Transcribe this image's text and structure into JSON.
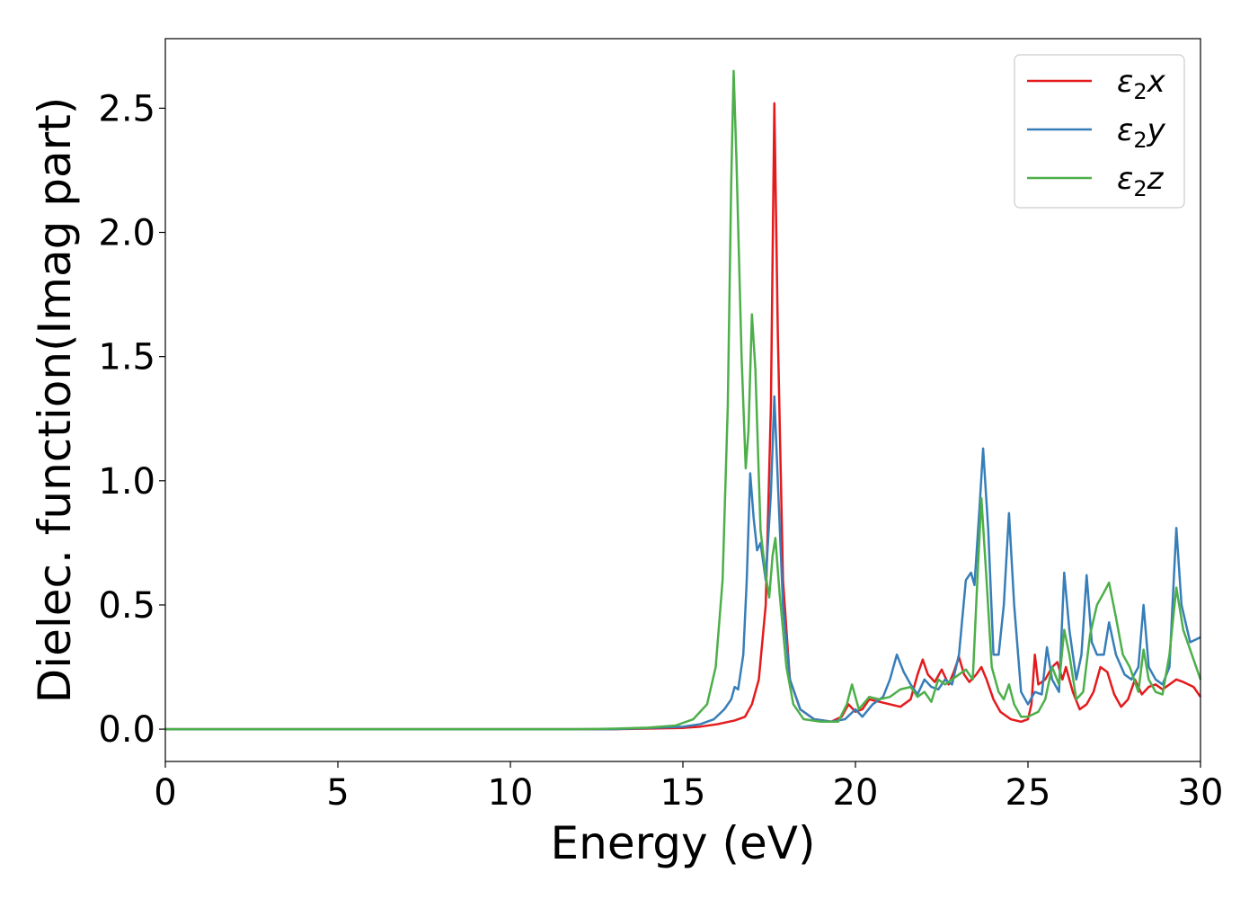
{
  "chart_data": {
    "type": "line",
    "title": "",
    "xlabel": "Energy (eV)",
    "ylabel": "Dielec. function(Imag part)",
    "xlim": [
      0,
      30
    ],
    "ylim": [
      -0.13,
      2.78
    ],
    "xticks": [
      0,
      5,
      10,
      15,
      20,
      25,
      30
    ],
    "yticks": [
      0.0,
      0.5,
      1.0,
      1.5,
      2.0,
      2.5
    ],
    "xtick_labels": [
      "0",
      "5",
      "10",
      "15",
      "20",
      "25",
      "30"
    ],
    "ytick_labels": [
      "0.0",
      "0.5",
      "1.0",
      "1.5",
      "2.0",
      "2.5"
    ],
    "grid": false,
    "legend_position": "top-right",
    "series": [
      {
        "name": "ε₂x",
        "legend_main": "ε",
        "legend_sub": "2",
        "legend_var": "x",
        "color": "#e41a1c",
        "points": [
          [
            0,
            0.0
          ],
          [
            5,
            0.0
          ],
          [
            10,
            0.0
          ],
          [
            13,
            0.0
          ],
          [
            15,
            0.005
          ],
          [
            15.5,
            0.01
          ],
          [
            16,
            0.02
          ],
          [
            16.5,
            0.035
          ],
          [
            16.8,
            0.05
          ],
          [
            17.0,
            0.1
          ],
          [
            17.2,
            0.2
          ],
          [
            17.4,
            0.5
          ],
          [
            17.55,
            1.3
          ],
          [
            17.65,
            2.52
          ],
          [
            17.75,
            1.6
          ],
          [
            17.9,
            0.6
          ],
          [
            18.1,
            0.2
          ],
          [
            18.4,
            0.08
          ],
          [
            18.8,
            0.04
          ],
          [
            19.3,
            0.03
          ],
          [
            19.6,
            0.05
          ],
          [
            19.8,
            0.1
          ],
          [
            20.0,
            0.07
          ],
          [
            20.2,
            0.08
          ],
          [
            20.4,
            0.12
          ],
          [
            20.7,
            0.11
          ],
          [
            21.0,
            0.1
          ],
          [
            21.3,
            0.09
          ],
          [
            21.6,
            0.12
          ],
          [
            21.8,
            0.22
          ],
          [
            21.95,
            0.28
          ],
          [
            22.1,
            0.22
          ],
          [
            22.3,
            0.19
          ],
          [
            22.5,
            0.24
          ],
          [
            22.7,
            0.18
          ],
          [
            22.85,
            0.23
          ],
          [
            23.0,
            0.29
          ],
          [
            23.15,
            0.22
          ],
          [
            23.3,
            0.19
          ],
          [
            23.5,
            0.22
          ],
          [
            23.65,
            0.25
          ],
          [
            23.8,
            0.2
          ],
          [
            24.0,
            0.12
          ],
          [
            24.2,
            0.07
          ],
          [
            24.5,
            0.04
          ],
          [
            24.8,
            0.03
          ],
          [
            25.0,
            0.04
          ],
          [
            25.1,
            0.1
          ],
          [
            25.2,
            0.3
          ],
          [
            25.3,
            0.18
          ],
          [
            25.5,
            0.2
          ],
          [
            25.7,
            0.25
          ],
          [
            25.85,
            0.27
          ],
          [
            26.0,
            0.2
          ],
          [
            26.1,
            0.25
          ],
          [
            26.3,
            0.15
          ],
          [
            26.5,
            0.08
          ],
          [
            26.7,
            0.1
          ],
          [
            26.9,
            0.15
          ],
          [
            27.1,
            0.25
          ],
          [
            27.3,
            0.23
          ],
          [
            27.5,
            0.14
          ],
          [
            27.7,
            0.09
          ],
          [
            27.9,
            0.12
          ],
          [
            28.1,
            0.2
          ],
          [
            28.3,
            0.14
          ],
          [
            28.5,
            0.17
          ],
          [
            28.7,
            0.18
          ],
          [
            28.9,
            0.16
          ],
          [
            29.1,
            0.18
          ],
          [
            29.3,
            0.2
          ],
          [
            29.5,
            0.19
          ],
          [
            29.8,
            0.17
          ],
          [
            30.0,
            0.13
          ]
        ]
      },
      {
        "name": "ε₂y",
        "legend_main": "ε",
        "legend_sub": "2",
        "legend_var": "y",
        "color": "#377eb8",
        "points": [
          [
            0,
            0.0
          ],
          [
            5,
            0.0
          ],
          [
            10,
            0.0
          ],
          [
            13,
            0.0
          ],
          [
            15,
            0.01
          ],
          [
            15.5,
            0.02
          ],
          [
            15.9,
            0.04
          ],
          [
            16.2,
            0.08
          ],
          [
            16.4,
            0.12
          ],
          [
            16.5,
            0.17
          ],
          [
            16.6,
            0.16
          ],
          [
            16.75,
            0.3
          ],
          [
            16.85,
            0.6
          ],
          [
            16.95,
            1.03
          ],
          [
            17.05,
            0.85
          ],
          [
            17.15,
            0.72
          ],
          [
            17.25,
            0.75
          ],
          [
            17.4,
            0.6
          ],
          [
            17.55,
            0.95
          ],
          [
            17.65,
            1.34
          ],
          [
            17.75,
            1.0
          ],
          [
            17.9,
            0.5
          ],
          [
            18.1,
            0.2
          ],
          [
            18.4,
            0.08
          ],
          [
            18.8,
            0.04
          ],
          [
            19.3,
            0.03
          ],
          [
            19.7,
            0.04
          ],
          [
            20.0,
            0.08
          ],
          [
            20.2,
            0.05
          ],
          [
            20.5,
            0.1
          ],
          [
            20.8,
            0.13
          ],
          [
            21.0,
            0.2
          ],
          [
            21.2,
            0.3
          ],
          [
            21.4,
            0.23
          ],
          [
            21.6,
            0.18
          ],
          [
            21.8,
            0.14
          ],
          [
            22.0,
            0.2
          ],
          [
            22.2,
            0.17
          ],
          [
            22.4,
            0.16
          ],
          [
            22.6,
            0.2
          ],
          [
            22.8,
            0.18
          ],
          [
            23.0,
            0.3
          ],
          [
            23.2,
            0.6
          ],
          [
            23.35,
            0.63
          ],
          [
            23.45,
            0.58
          ],
          [
            23.6,
            0.9
          ],
          [
            23.7,
            1.13
          ],
          [
            23.85,
            0.8
          ],
          [
            24.0,
            0.3
          ],
          [
            24.15,
            0.3
          ],
          [
            24.3,
            0.5
          ],
          [
            24.45,
            0.87
          ],
          [
            24.6,
            0.5
          ],
          [
            24.8,
            0.15
          ],
          [
            25.0,
            0.1
          ],
          [
            25.2,
            0.15
          ],
          [
            25.4,
            0.14
          ],
          [
            25.55,
            0.33
          ],
          [
            25.7,
            0.2
          ],
          [
            25.9,
            0.15
          ],
          [
            26.05,
            0.63
          ],
          [
            26.2,
            0.4
          ],
          [
            26.4,
            0.2
          ],
          [
            26.55,
            0.3
          ],
          [
            26.7,
            0.62
          ],
          [
            26.85,
            0.35
          ],
          [
            27.0,
            0.3
          ],
          [
            27.2,
            0.3
          ],
          [
            27.35,
            0.43
          ],
          [
            27.55,
            0.3
          ],
          [
            27.8,
            0.22
          ],
          [
            28.0,
            0.2
          ],
          [
            28.2,
            0.25
          ],
          [
            28.35,
            0.5
          ],
          [
            28.5,
            0.25
          ],
          [
            28.7,
            0.2
          ],
          [
            28.9,
            0.18
          ],
          [
            29.1,
            0.25
          ],
          [
            29.3,
            0.81
          ],
          [
            29.45,
            0.5
          ],
          [
            29.7,
            0.35
          ],
          [
            30.0,
            0.37
          ]
        ]
      },
      {
        "name": "ε₂z",
        "legend_main": "ε",
        "legend_sub": "2",
        "legend_var": "z",
        "color": "#4daf4a",
        "points": [
          [
            0,
            0.0
          ],
          [
            5,
            0.0
          ],
          [
            10,
            0.0
          ],
          [
            12,
            0.0
          ],
          [
            13,
            0.002
          ],
          [
            14,
            0.006
          ],
          [
            14.8,
            0.015
          ],
          [
            15.3,
            0.04
          ],
          [
            15.7,
            0.1
          ],
          [
            15.95,
            0.25
          ],
          [
            16.15,
            0.6
          ],
          [
            16.3,
            1.3
          ],
          [
            16.4,
            2.2
          ],
          [
            16.47,
            2.65
          ],
          [
            16.55,
            2.3
          ],
          [
            16.7,
            1.5
          ],
          [
            16.82,
            1.05
          ],
          [
            16.9,
            1.2
          ],
          [
            17.0,
            1.67
          ],
          [
            17.1,
            1.45
          ],
          [
            17.25,
            0.8
          ],
          [
            17.4,
            0.62
          ],
          [
            17.5,
            0.53
          ],
          [
            17.6,
            0.7
          ],
          [
            17.68,
            0.77
          ],
          [
            17.8,
            0.55
          ],
          [
            18.0,
            0.25
          ],
          [
            18.2,
            0.1
          ],
          [
            18.5,
            0.04
          ],
          [
            19.0,
            0.03
          ],
          [
            19.5,
            0.03
          ],
          [
            19.75,
            0.1
          ],
          [
            19.9,
            0.18
          ],
          [
            20.1,
            0.08
          ],
          [
            20.4,
            0.13
          ],
          [
            20.7,
            0.12
          ],
          [
            21.0,
            0.13
          ],
          [
            21.3,
            0.16
          ],
          [
            21.6,
            0.17
          ],
          [
            21.8,
            0.13
          ],
          [
            22.0,
            0.15
          ],
          [
            22.2,
            0.11
          ],
          [
            22.4,
            0.2
          ],
          [
            22.6,
            0.18
          ],
          [
            22.8,
            0.2
          ],
          [
            23.0,
            0.22
          ],
          [
            23.2,
            0.24
          ],
          [
            23.4,
            0.2
          ],
          [
            23.55,
            0.65
          ],
          [
            23.65,
            0.93
          ],
          [
            23.8,
            0.6
          ],
          [
            23.95,
            0.25
          ],
          [
            24.15,
            0.15
          ],
          [
            24.3,
            0.12
          ],
          [
            24.45,
            0.18
          ],
          [
            24.6,
            0.1
          ],
          [
            24.8,
            0.05
          ],
          [
            25.0,
            0.05
          ],
          [
            25.3,
            0.07
          ],
          [
            25.5,
            0.12
          ],
          [
            25.7,
            0.25
          ],
          [
            25.9,
            0.18
          ],
          [
            26.05,
            0.4
          ],
          [
            26.2,
            0.3
          ],
          [
            26.4,
            0.12
          ],
          [
            26.6,
            0.15
          ],
          [
            26.8,
            0.38
          ],
          [
            27.0,
            0.5
          ],
          [
            27.2,
            0.55
          ],
          [
            27.35,
            0.59
          ],
          [
            27.55,
            0.45
          ],
          [
            27.75,
            0.3
          ],
          [
            27.95,
            0.25
          ],
          [
            28.2,
            0.15
          ],
          [
            28.35,
            0.32
          ],
          [
            28.5,
            0.2
          ],
          [
            28.7,
            0.15
          ],
          [
            28.9,
            0.14
          ],
          [
            29.1,
            0.3
          ],
          [
            29.3,
            0.57
          ],
          [
            29.5,
            0.4
          ],
          [
            29.8,
            0.28
          ],
          [
            30.0,
            0.2
          ]
        ]
      }
    ]
  }
}
